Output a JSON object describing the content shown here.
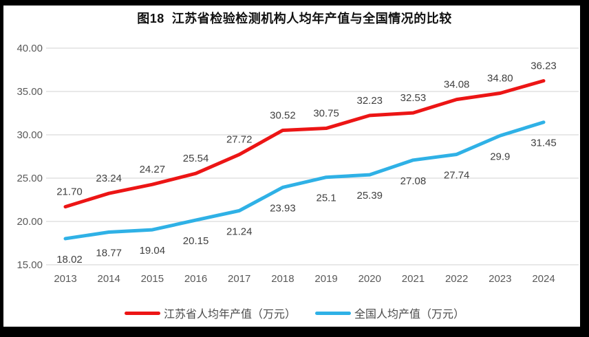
{
  "title": "图18  江苏省检验检测机构人均年产值与全国情况的比较",
  "chart_data": {
    "type": "line",
    "categories": [
      "2013",
      "2014",
      "2015",
      "2016",
      "2017",
      "2018",
      "2019",
      "2020",
      "2021",
      "2022",
      "2023",
      "2024"
    ],
    "series": [
      {
        "name": "江苏省人均年产值（万元）",
        "color": "#ec1515",
        "values": [
          21.7,
          23.24,
          24.27,
          25.54,
          27.72,
          30.52,
          30.75,
          32.23,
          32.53,
          34.08,
          34.8,
          36.23
        ],
        "labels": [
          "21.70",
          "23.24",
          "24.27",
          "25.54",
          "27.72",
          "30.52",
          "30.75",
          "32.23",
          "32.53",
          "34.08",
          "34.80",
          "36.23"
        ]
      },
      {
        "name": "全国人均产值（万元）",
        "color": "#2fb1e6",
        "values": [
          18.02,
          18.77,
          19.04,
          20.15,
          21.24,
          23.93,
          25.1,
          25.39,
          27.08,
          27.74,
          29.9,
          31.45
        ],
        "labels": [
          "18.02",
          "18.77",
          "19.04",
          "20.15",
          "21.24",
          "23.93",
          "25.1",
          "25.39",
          "27.08",
          "27.74",
          "29.9",
          "31.45"
        ]
      }
    ],
    "ylim": [
      15,
      40
    ],
    "ytick_step": 5,
    "ytick_labels": [
      "15.00",
      "20.00",
      "25.00",
      "30.00",
      "35.00",
      "40.00"
    ],
    "xlabel": "",
    "ylabel": "",
    "grid": "horizontal-only",
    "legend_position": "bottom",
    "colors": {
      "gridline": "#d9d9d9",
      "axis_text": "#595959",
      "data_label_text": "#404040",
      "frame": "#000000"
    }
  }
}
